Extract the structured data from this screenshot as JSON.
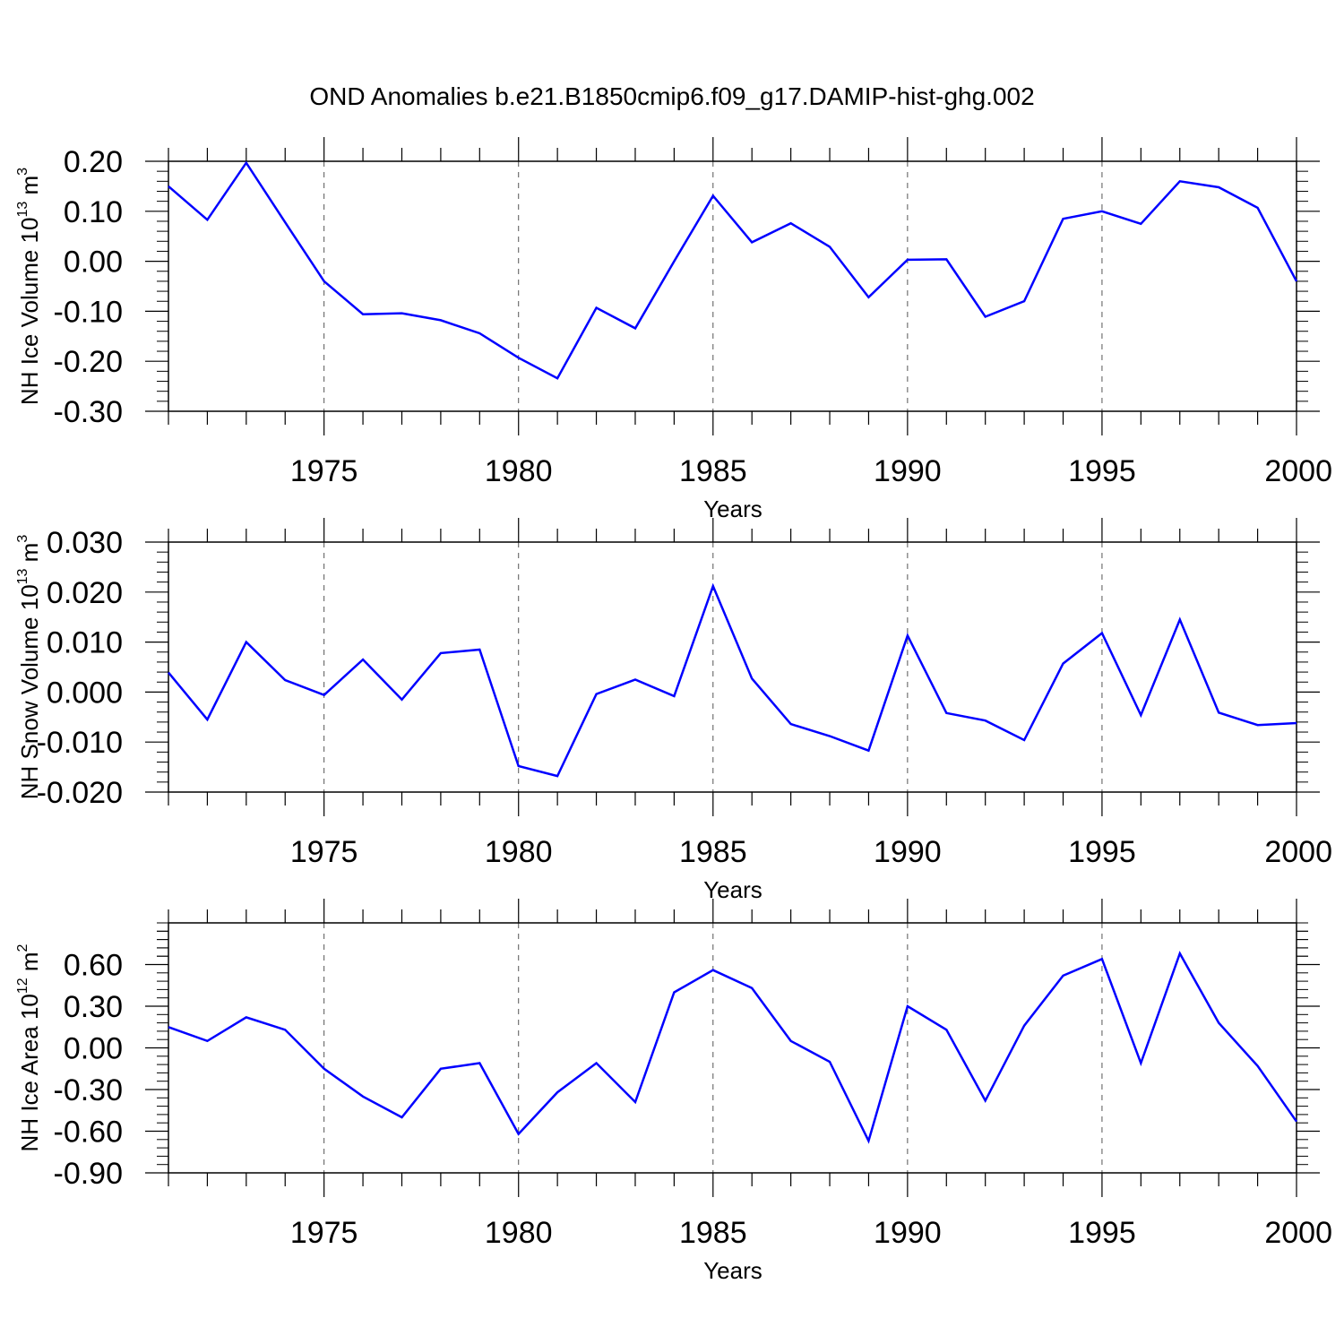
{
  "title": "OND Anomalies b.e21.B1850cmip6.f09_g17.DAMIP-hist-ghg.002",
  "chart_data": [
    {
      "type": "line",
      "xlabel": "Years",
      "ylabel": {
        "pre": "NH Ice Volume 10",
        "sup1": "13",
        "mid": " m",
        "sup2": "3"
      },
      "xlim": [
        1971,
        2000
      ],
      "ylim": [
        -0.3,
        0.2
      ],
      "x_ticks": [
        1975,
        1980,
        1985,
        1990,
        1995,
        2000
      ],
      "y_ticks": [
        -0.3,
        -0.2,
        -0.1,
        0.0,
        0.1,
        0.2
      ],
      "y_tick_labels": [
        "-0.30",
        "-0.20",
        "-0.10",
        "0.00",
        "0.10",
        "0.20"
      ],
      "x_tick_labels": [
        "1975",
        "1980",
        "1985",
        "1990",
        "1995",
        "2000"
      ],
      "grid": "vertical dashed at major x ticks",
      "line_color": "#0000ff",
      "series": [
        {
          "x": [
            1971,
            1972,
            1973,
            1974,
            1975,
            1976,
            1977,
            1978,
            1979,
            1980,
            1981,
            1982,
            1983,
            1984,
            1985,
            1986,
            1987,
            1988,
            1989,
            1990,
            1991,
            1992,
            1993,
            1994,
            1995,
            1996,
            1997,
            1998,
            1999,
            2000
          ],
          "values": [
            0.15,
            0.083,
            0.197,
            0.078,
            -0.04,
            -0.106,
            -0.104,
            -0.118,
            -0.144,
            -0.193,
            -0.234,
            -0.093,
            -0.134,
            0.0,
            0.131,
            0.038,
            0.076,
            0.029,
            -0.072,
            0.003,
            0.004,
            -0.111,
            -0.08,
            0.085,
            0.1,
            0.075,
            0.16,
            0.148,
            0.107,
            -0.04
          ]
        }
      ]
    },
    {
      "type": "line",
      "xlabel": "Years",
      "ylabel": {
        "pre": "NH Snow Volume 10",
        "sup1": "13",
        "mid": " m",
        "sup2": "3"
      },
      "xlim": [
        1971,
        2000
      ],
      "ylim": [
        -0.02,
        0.03
      ],
      "x_ticks": [
        1975,
        1980,
        1985,
        1990,
        1995,
        2000
      ],
      "y_ticks": [
        -0.02,
        -0.01,
        0.0,
        0.01,
        0.02,
        0.03
      ],
      "y_tick_labels": [
        "-0.020",
        "-0.010",
        "0.000",
        "0.010",
        "0.020",
        "0.030"
      ],
      "x_tick_labels": [
        "1975",
        "1980",
        "1985",
        "1990",
        "1995",
        "2000"
      ],
      "grid": "vertical dashed at major x ticks",
      "line_color": "#0000ff",
      "series": [
        {
          "x": [
            1971,
            1972,
            1973,
            1974,
            1975,
            1976,
            1977,
            1978,
            1979,
            1980,
            1981,
            1982,
            1983,
            1984,
            1985,
            1986,
            1987,
            1988,
            1989,
            1990,
            1991,
            1992,
            1993,
            1994,
            1995,
            1996,
            1997,
            1998,
            1999,
            2000
          ],
          "values": [
            0.0039,
            -0.0055,
            0.01,
            0.0024,
            -0.0006,
            0.0065,
            -0.0015,
            0.0078,
            0.0085,
            -0.0148,
            -0.0168,
            -0.0004,
            0.0025,
            -0.0008,
            0.0212,
            0.0027,
            -0.0064,
            -0.0088,
            -0.0117,
            0.0113,
            -0.0042,
            -0.0057,
            -0.0096,
            0.0057,
            0.0118,
            -0.0046,
            0.0145,
            -0.0041,
            -0.0066,
            -0.0062
          ]
        }
      ]
    },
    {
      "type": "line",
      "xlabel": "Years",
      "ylabel": {
        "pre": "NH Ice Area 10",
        "sup1": "12",
        "mid": " m",
        "sup2": "2"
      },
      "xlim": [
        1971,
        2000
      ],
      "ylim": [
        -0.9,
        0.9
      ],
      "x_ticks": [
        1975,
        1980,
        1985,
        1990,
        1995,
        2000
      ],
      "y_ticks": [
        -0.9,
        -0.6,
        -0.3,
        0.0,
        0.3,
        0.6
      ],
      "y_tick_labels": [
        "-0.90",
        "-0.60",
        "-0.30",
        "0.00",
        "0.30",
        "0.60"
      ],
      "x_tick_labels": [
        "1975",
        "1980",
        "1985",
        "1990",
        "1995",
        "2000"
      ],
      "grid": "vertical dashed at major x ticks",
      "line_color": "#0000ff",
      "series": [
        {
          "x": [
            1971,
            1972,
            1973,
            1974,
            1975,
            1976,
            1977,
            1978,
            1979,
            1980,
            1981,
            1982,
            1983,
            1984,
            1985,
            1986,
            1987,
            1988,
            1989,
            1990,
            1991,
            1992,
            1993,
            1994,
            1995,
            1996,
            1997,
            1998,
            1999,
            2000
          ],
          "values": [
            0.15,
            0.05,
            0.22,
            0.13,
            -0.15,
            -0.35,
            -0.5,
            -0.15,
            -0.11,
            -0.62,
            -0.32,
            -0.11,
            -0.39,
            0.4,
            0.56,
            0.43,
            0.05,
            -0.1,
            -0.67,
            0.3,
            0.13,
            -0.38,
            0.16,
            0.52,
            0.64,
            -0.11,
            0.68,
            0.18,
            -0.13,
            -0.53
          ]
        }
      ]
    }
  ]
}
